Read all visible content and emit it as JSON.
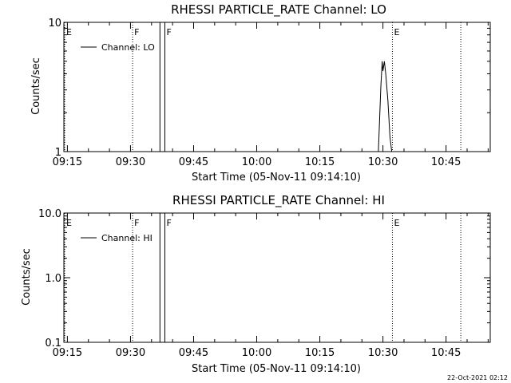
{
  "footer": {
    "timestamp": "22-Oct-2021 02:12"
  },
  "chart_data": [
    {
      "type": "line",
      "title": "RHESSI PARTICLE_RATE Channel: LO",
      "xlabel": "Start Time (05-Nov-11 09:14:10)",
      "ylabel": "Counts/sec",
      "ylog": true,
      "xlim": [
        "09:14:10",
        "10:55:30"
      ],
      "ylim": [
        1,
        10
      ],
      "x_ticks": [
        "09:15",
        "09:30",
        "09:45",
        "10:00",
        "10:15",
        "10:30",
        "10:45"
      ],
      "y_ticks": [
        "1",
        "10"
      ],
      "legend": {
        "position": "top-left",
        "entries": [
          "Channel: LO"
        ]
      },
      "series": [
        {
          "name": "Channel: LO",
          "x": [
            "10:28:55",
            "10:29:30",
            "10:29:50",
            "10:30:00",
            "10:30:20",
            "10:30:40",
            "10:31:10",
            "10:31:40",
            "10:32:05"
          ],
          "y": [
            1.0,
            3.2,
            5.0,
            4.2,
            5.0,
            4.0,
            2.5,
            1.3,
            1.0
          ]
        }
      ],
      "markers": [
        {
          "label": "E",
          "time": "09:14:10",
          "style": "dotted"
        },
        {
          "label": "F",
          "time": "09:30:30",
          "style": "dotted"
        },
        {
          "label": "",
          "time": "09:37:00",
          "style": "solid"
        },
        {
          "label": "F",
          "time": "09:38:10",
          "style": "solid"
        },
        {
          "label": "E",
          "time": "10:32:15",
          "style": "dotted"
        },
        {
          "label": "",
          "time": "10:48:30",
          "style": "dotted"
        }
      ]
    },
    {
      "type": "line",
      "title": "RHESSI PARTICLE_RATE Channel: HI",
      "xlabel": "Start Time (05-Nov-11 09:14:10)",
      "ylabel": "Counts/sec",
      "ylog": true,
      "xlim": [
        "09:14:10",
        "10:55:30"
      ],
      "ylim": [
        0.1,
        10
      ],
      "x_ticks": [
        "09:15",
        "09:30",
        "09:45",
        "10:00",
        "10:15",
        "10:30",
        "10:45"
      ],
      "y_ticks": [
        "0.1",
        "1.0",
        "10.0"
      ],
      "legend": {
        "position": "top-left",
        "entries": [
          "Channel: HI"
        ]
      },
      "series": [
        {
          "name": "Channel: HI",
          "x": [],
          "y": []
        }
      ],
      "markers": [
        {
          "label": "E",
          "time": "09:14:10",
          "style": "dotted"
        },
        {
          "label": "F",
          "time": "09:30:30",
          "style": "dotted"
        },
        {
          "label": "",
          "time": "09:37:00",
          "style": "solid"
        },
        {
          "label": "F",
          "time": "09:38:10",
          "style": "solid"
        },
        {
          "label": "E",
          "time": "10:32:15",
          "style": "dotted"
        },
        {
          "label": "",
          "time": "10:48:30",
          "style": "dotted"
        }
      ]
    }
  ]
}
